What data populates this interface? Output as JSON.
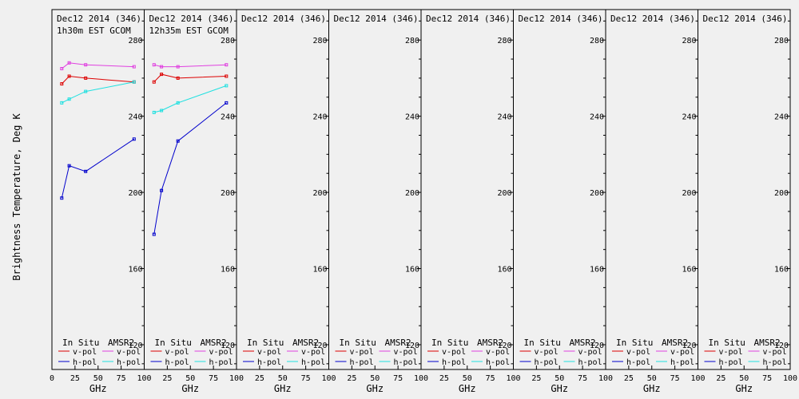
{
  "figure": {
    "ylabel": "Brightness Temperature, Deg K",
    "xlabel": "GHz",
    "legend": {
      "in_situ": "In Situ",
      "amsr2": "AMSR2",
      "v_pol": "v-pol",
      "h_pol": "h-pol"
    },
    "colors": {
      "in_situ_v": "#dd0000",
      "in_situ_h": "#0000cc",
      "amsr2_v": "#e040e0",
      "amsr2_h": "#20e0e0"
    }
  },
  "chart_data": [
    {
      "type": "line",
      "title": "Dec12 2014 (346)",
      "subtitle": "1h30m EST GCOM",
      "xlabel": "GHz",
      "ylabel": "Brightness Temperature, Deg K",
      "xlim": [
        0,
        100
      ],
      "ylim": [
        107,
        296
      ],
      "xticks": [
        0,
        25,
        50,
        75,
        100
      ],
      "yticks": [
        120,
        160,
        200,
        240,
        280
      ],
      "series": [
        {
          "name": "In Situ v-pol",
          "x": [
            10.65,
            18.7,
            36.5,
            89
          ],
          "y": [
            257,
            261,
            260,
            258
          ]
        },
        {
          "name": "In Situ h-pol",
          "x": [
            10.65,
            18.7,
            36.5,
            89
          ],
          "y": [
            197,
            214,
            211,
            228
          ]
        },
        {
          "name": "AMSR2 v-pol",
          "x": [
            10.65,
            18.7,
            36.5,
            89
          ],
          "y": [
            265,
            268,
            267,
            266
          ]
        },
        {
          "name": "AMSR2 h-pol",
          "x": [
            10.65,
            18.7,
            36.5,
            89
          ],
          "y": [
            247,
            249,
            253,
            258
          ]
        }
      ]
    },
    {
      "type": "line",
      "title": "Dec12 2014 (346)",
      "subtitle": "12h35m EST GCOM",
      "xlabel": "GHz",
      "xlim": [
        0,
        100
      ],
      "ylim": [
        107,
        296
      ],
      "xticks": [
        0,
        25,
        50,
        75,
        100
      ],
      "yticks": [
        120,
        160,
        200,
        240,
        280
      ],
      "series": [
        {
          "name": "In Situ v-pol",
          "x": [
            10.65,
            18.7,
            36.5,
            89
          ],
          "y": [
            258,
            262,
            260,
            261
          ]
        },
        {
          "name": "In Situ h-pol",
          "x": [
            10.65,
            18.7,
            36.5,
            89
          ],
          "y": [
            178,
            201,
            227,
            247
          ]
        },
        {
          "name": "AMSR2 v-pol",
          "x": [
            10.65,
            18.7,
            36.5,
            89
          ],
          "y": [
            267,
            266,
            266,
            267
          ]
        },
        {
          "name": "AMSR2 h-pol",
          "x": [
            10.65,
            18.7,
            36.5,
            89
          ],
          "y": [
            242,
            243,
            247,
            256
          ]
        }
      ]
    },
    {
      "type": "line",
      "title": "Dec12 2014 (346)",
      "xlabel": "GHz",
      "xlim": [
        0,
        100
      ],
      "ylim": [
        107,
        296
      ],
      "xticks": [
        0,
        25,
        50,
        75,
        100
      ],
      "yticks": [
        120,
        160,
        200,
        240,
        280
      ],
      "series": []
    },
    {
      "type": "line",
      "title": "Dec12 2014 (346)",
      "xlabel": "GHz",
      "xlim": [
        0,
        100
      ],
      "ylim": [
        107,
        296
      ],
      "xticks": [
        0,
        25,
        50,
        75,
        100
      ],
      "yticks": [
        120,
        160,
        200,
        240,
        280
      ],
      "series": []
    },
    {
      "type": "line",
      "title": "Dec12 2014 (346)",
      "xlabel": "GHz",
      "xlim": [
        0,
        100
      ],
      "ylim": [
        107,
        296
      ],
      "xticks": [
        0,
        25,
        50,
        75,
        100
      ],
      "yticks": [
        120,
        160,
        200,
        240,
        280
      ],
      "series": []
    },
    {
      "type": "line",
      "title": "Dec12 2014 (346)",
      "xlabel": "GHz",
      "xlim": [
        0,
        100
      ],
      "ylim": [
        107,
        296
      ],
      "xticks": [
        0,
        25,
        50,
        75,
        100
      ],
      "yticks": [
        120,
        160,
        200,
        240,
        280
      ],
      "series": []
    },
    {
      "type": "line",
      "title": "Dec12 2014 (346)",
      "xlabel": "GHz",
      "xlim": [
        0,
        100
      ],
      "ylim": [
        107,
        296
      ],
      "xticks": [
        0,
        25,
        50,
        75,
        100
      ],
      "yticks": [
        120,
        160,
        200,
        240,
        280
      ],
      "series": []
    },
    {
      "type": "line",
      "title": "Dec12 2014 (346)",
      "xlabel": "GHz",
      "xlim": [
        0,
        100
      ],
      "ylim": [
        107,
        296
      ],
      "xticks": [
        0,
        25,
        50,
        75,
        100
      ],
      "yticks": [
        120,
        160,
        200,
        240,
        280
      ],
      "series": []
    }
  ]
}
